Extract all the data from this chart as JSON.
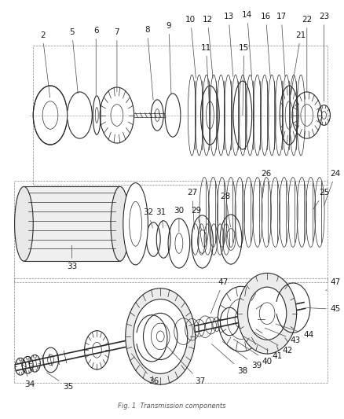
{
  "bg": "#ffffff",
  "lc": "#2a2a2a",
  "lw_thin": 0.5,
  "lw_med": 0.8,
  "lw_thick": 1.2,
  "figsize": [
    4.39,
    5.33
  ],
  "dpi": 100,
  "label_fs": 7.5,
  "label_color": "#1a1a1a",
  "footnote": "Fig. 1  Transmission components",
  "footnote_fs": 6.0
}
